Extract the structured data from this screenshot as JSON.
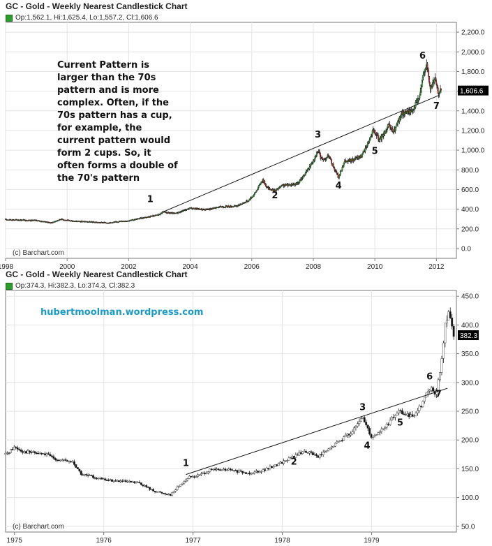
{
  "chart_data": [
    {
      "type": "candlestick",
      "title": "GC - Gold - Weekly Nearest Candlestick Chart",
      "ohlc_text": "Op:1,562.1, Hi:1,625.4, Lo:1,557.2, Cl:1,606.6",
      "last_price_label": "1,606.6",
      "watermark": "(c) Barchart.com",
      "annotation": "Current Pattern is larger than the 70s pattern and is more complex. Often, if the 70s pattern has a cup, for example, the current pattern would form 2 cups. So, it often forms a double of the 70's pattern",
      "xlim": [
        1998.0,
        2012.65
      ],
      "ylim": [
        -100,
        2300
      ],
      "x_ticks": [
        1998,
        2000,
        2002,
        2004,
        2006,
        2008,
        2010,
        2012
      ],
      "x_tick_labels": [
        "1998",
        "2000",
        "2002",
        "2004",
        "2006",
        "2008",
        "2010",
        "2012"
      ],
      "y_ticks": [
        0,
        200,
        400,
        600,
        800,
        1000,
        1200,
        1400,
        1600,
        1800,
        2000,
        2200
      ],
      "y_tick_labels": [
        "0.0",
        "200.0",
        "400.0",
        "600.0",
        "800.0",
        "1,000.0",
        "1,200.0",
        "1,400.0",
        "1,600.0",
        "1,800.0",
        "2,000.0",
        "2,200.0"
      ],
      "grid": true,
      "price_path": [
        [
          1998.0,
          295
        ],
        [
          1998.5,
          290
        ],
        [
          1999.0,
          285
        ],
        [
          1999.5,
          262
        ],
        [
          1999.8,
          300
        ],
        [
          2000.0,
          285
        ],
        [
          2000.5,
          275
        ],
        [
          2001.0,
          265
        ],
        [
          2001.4,
          262
        ],
        [
          2001.8,
          280
        ],
        [
          2002.0,
          282
        ],
        [
          2002.5,
          315
        ],
        [
          2003.0,
          345
        ],
        [
          2003.1,
          370
        ],
        [
          2003.5,
          355
        ],
        [
          2004.0,
          410
        ],
        [
          2004.5,
          395
        ],
        [
          2005.0,
          425
        ],
        [
          2005.5,
          430
        ],
        [
          2005.9,
          490
        ],
        [
          2006.1,
          560
        ],
        [
          2006.35,
          700
        ],
        [
          2006.5,
          620
        ],
        [
          2006.75,
          585
        ],
        [
          2007.0,
          640
        ],
        [
          2007.5,
          660
        ],
        [
          2007.8,
          790
        ],
        [
          2008.0,
          900
        ],
        [
          2008.15,
          990
        ],
        [
          2008.3,
          900
        ],
        [
          2008.5,
          940
        ],
        [
          2008.7,
          800
        ],
        [
          2008.82,
          720
        ],
        [
          2009.0,
          880
        ],
        [
          2009.3,
          900
        ],
        [
          2009.6,
          950
        ],
        [
          2009.95,
          1200
        ],
        [
          2010.15,
          1100
        ],
        [
          2010.45,
          1250
        ],
        [
          2010.6,
          1180
        ],
        [
          2010.9,
          1380
        ],
        [
          2011.2,
          1400
        ],
        [
          2011.45,
          1540
        ],
        [
          2011.6,
          1800
        ],
        [
          2011.68,
          1890
        ],
        [
          2011.8,
          1620
        ],
        [
          2011.95,
          1730
        ],
        [
          2012.05,
          1590
        ],
        [
          2012.15,
          1606.6
        ]
      ],
      "trendline": [
        [
          2003.1,
          370
        ],
        [
          2012.1,
          1560
        ]
      ],
      "point_labels": [
        {
          "label": "1",
          "x": 2002.7,
          "y": 470
        },
        {
          "label": "2",
          "x": 2006.75,
          "y": 510
        },
        {
          "label": "3",
          "x": 2008.15,
          "y": 1130
        },
        {
          "label": "4",
          "x": 2008.82,
          "y": 610
        },
        {
          "label": "5",
          "x": 2010.0,
          "y": 960
        },
        {
          "label": "6",
          "x": 2011.55,
          "y": 1930
        },
        {
          "label": "7",
          "x": 2012.0,
          "y": 1420
        }
      ]
    },
    {
      "type": "candlestick",
      "title": "GC - Gold - Weekly Nearest Candlestick Chart",
      "ohlc_text": "Op:374.3, Hi:382.3, Lo:374.3, Cl:382.3",
      "last_price_label": "382.3",
      "watermark": "(c) Barchart.com",
      "annotation": "hubertmoolman.wordpress.com",
      "xlim": [
        1974.9,
        1979.95
      ],
      "ylim": [
        40,
        460
      ],
      "x_ticks": [
        1975,
        1976,
        1977,
        1978,
        1979
      ],
      "x_tick_labels": [
        "1975",
        "1976",
        "1977",
        "1978",
        "1979"
      ],
      "y_ticks": [
        50,
        100,
        150,
        200,
        250,
        300,
        350,
        400,
        450
      ],
      "y_tick_labels": [
        "50.0",
        "100.0",
        "150.0",
        "200.0",
        "250.0",
        "300.0",
        "350.0",
        "400.0",
        "450.0"
      ],
      "grid": true,
      "price_path": [
        [
          1974.9,
          175
        ],
        [
          1975.0,
          188
        ],
        [
          1975.1,
          180
        ],
        [
          1975.2,
          178
        ],
        [
          1975.35,
          175
        ],
        [
          1975.5,
          165
        ],
        [
          1975.65,
          162
        ],
        [
          1975.75,
          140
        ],
        [
          1975.85,
          137
        ],
        [
          1976.0,
          131
        ],
        [
          1976.2,
          128
        ],
        [
          1976.4,
          125
        ],
        [
          1976.55,
          112
        ],
        [
          1976.65,
          108
        ],
        [
          1976.75,
          105
        ],
        [
          1976.85,
          122
        ],
        [
          1976.95,
          135
        ],
        [
          1977.05,
          138
        ],
        [
          1977.2,
          148
        ],
        [
          1977.4,
          148
        ],
        [
          1977.6,
          142
        ],
        [
          1977.8,
          148
        ],
        [
          1977.95,
          158
        ],
        [
          1978.15,
          173
        ],
        [
          1978.25,
          181
        ],
        [
          1978.4,
          172
        ],
        [
          1978.5,
          181
        ],
        [
          1978.65,
          200
        ],
        [
          1978.8,
          217
        ],
        [
          1978.9,
          240
        ],
        [
          1979.0,
          205
        ],
        [
          1979.15,
          222
        ],
        [
          1979.3,
          250
        ],
        [
          1979.45,
          240
        ],
        [
          1979.55,
          260
        ],
        [
          1979.65,
          290
        ],
        [
          1979.72,
          280
        ],
        [
          1979.78,
          330
        ],
        [
          1979.83,
          410
        ],
        [
          1979.87,
          420
        ],
        [
          1979.92,
          382.3
        ]
      ],
      "trendline": [
        [
          1976.92,
          140
        ],
        [
          1979.85,
          290
        ]
      ],
      "point_labels": [
        {
          "label": "1",
          "x": 1976.92,
          "y": 155
        },
        {
          "label": "2",
          "x": 1978.13,
          "y": 157
        },
        {
          "label": "3",
          "x": 1978.9,
          "y": 252
        },
        {
          "label": "4",
          "x": 1978.95,
          "y": 185
        },
        {
          "label": "5",
          "x": 1979.32,
          "y": 225
        },
        {
          "label": "6",
          "x": 1979.65,
          "y": 305
        },
        {
          "label": "7",
          "x": 1979.75,
          "y": 275
        }
      ]
    }
  ]
}
